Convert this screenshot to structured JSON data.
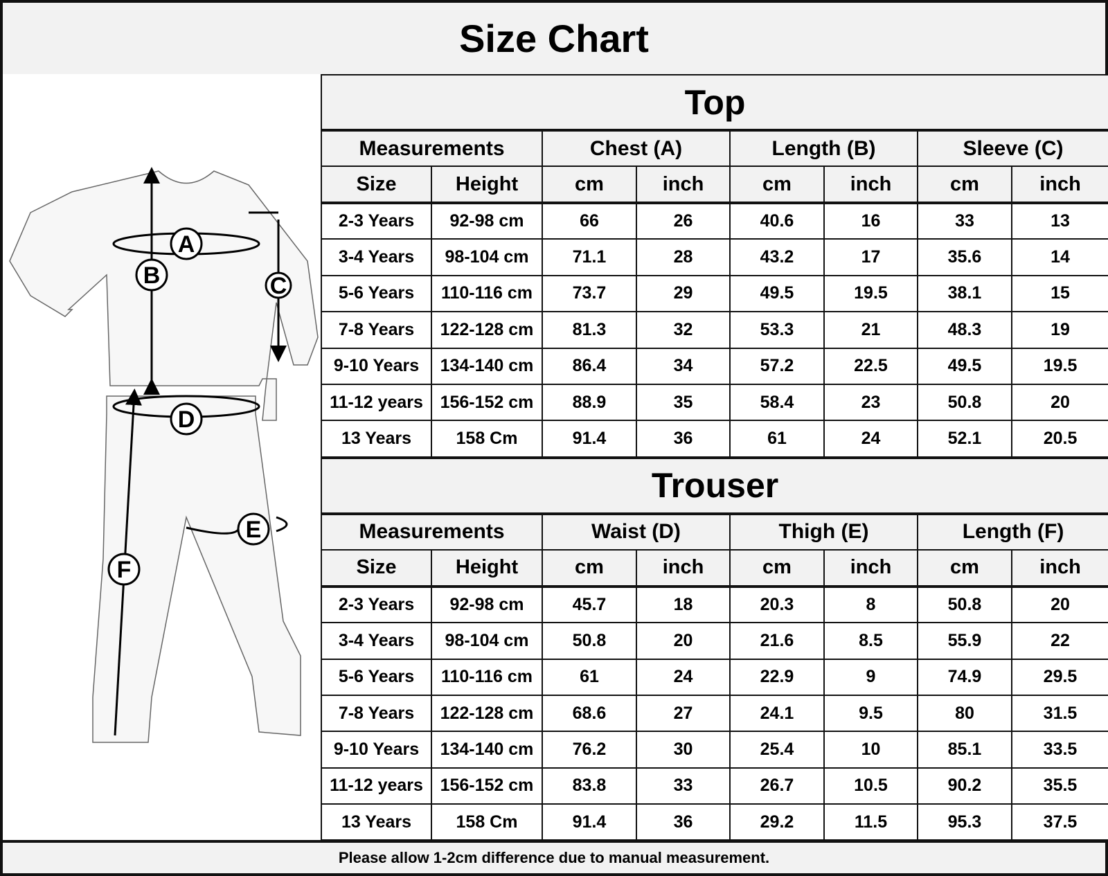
{
  "title": "Size Chart",
  "diagram_labels": [
    "A",
    "B",
    "C",
    "D",
    "E",
    "F"
  ],
  "top": {
    "title": "Top",
    "groups": [
      "Measurements",
      "Chest (A)",
      "Length (B)",
      "Sleeve (C)"
    ],
    "subheaders": [
      "Size",
      "Height",
      "cm",
      "inch",
      "cm",
      "inch",
      "cm",
      "inch"
    ],
    "rows": [
      [
        "2-3 Years",
        "92-98 cm",
        "66",
        "26",
        "40.6",
        "16",
        "33",
        "13"
      ],
      [
        "3-4 Years",
        "98-104 cm",
        "71.1",
        "28",
        "43.2",
        "17",
        "35.6",
        "14"
      ],
      [
        "5-6 Years",
        "110-116 cm",
        "73.7",
        "29",
        "49.5",
        "19.5",
        "38.1",
        "15"
      ],
      [
        "7-8 Years",
        "122-128 cm",
        "81.3",
        "32",
        "53.3",
        "21",
        "48.3",
        "19"
      ],
      [
        "9-10 Years",
        "134-140 cm",
        "86.4",
        "34",
        "57.2",
        "22.5",
        "49.5",
        "19.5"
      ],
      [
        "11-12 years",
        "156-152 cm",
        "88.9",
        "35",
        "58.4",
        "23",
        "50.8",
        "20"
      ],
      [
        "13 Years",
        "158 Cm",
        "91.4",
        "36",
        "61",
        "24",
        "52.1",
        "20.5"
      ]
    ]
  },
  "trouser": {
    "title": "Trouser",
    "groups": [
      "Measurements",
      "Waist (D)",
      "Thigh (E)",
      "Length (F)"
    ],
    "subheaders": [
      "Size",
      "Height",
      "cm",
      "inch",
      "cm",
      "inch",
      "cm",
      "inch"
    ],
    "rows": [
      [
        "2-3 Years",
        "92-98 cm",
        "45.7",
        "18",
        "20.3",
        "8",
        "50.8",
        "20"
      ],
      [
        "3-4 Years",
        "98-104 cm",
        "50.8",
        "20",
        "21.6",
        "8.5",
        "55.9",
        "22"
      ],
      [
        "5-6 Years",
        "110-116 cm",
        "61",
        "24",
        "22.9",
        "9",
        "74.9",
        "29.5"
      ],
      [
        "7-8 Years",
        "122-128 cm",
        "68.6",
        "27",
        "24.1",
        "9.5",
        "80",
        "31.5"
      ],
      [
        "9-10 Years",
        "134-140 cm",
        "76.2",
        "30",
        "25.4",
        "10",
        "85.1",
        "33.5"
      ],
      [
        "11-12 years",
        "156-152 cm",
        "83.8",
        "33",
        "26.7",
        "10.5",
        "90.2",
        "35.5"
      ],
      [
        "13 Years",
        "158 Cm",
        "91.4",
        "36",
        "29.2",
        "11.5",
        "95.3",
        "37.5"
      ]
    ]
  },
  "footer": "Please allow 1-2cm difference due to manual measurement."
}
